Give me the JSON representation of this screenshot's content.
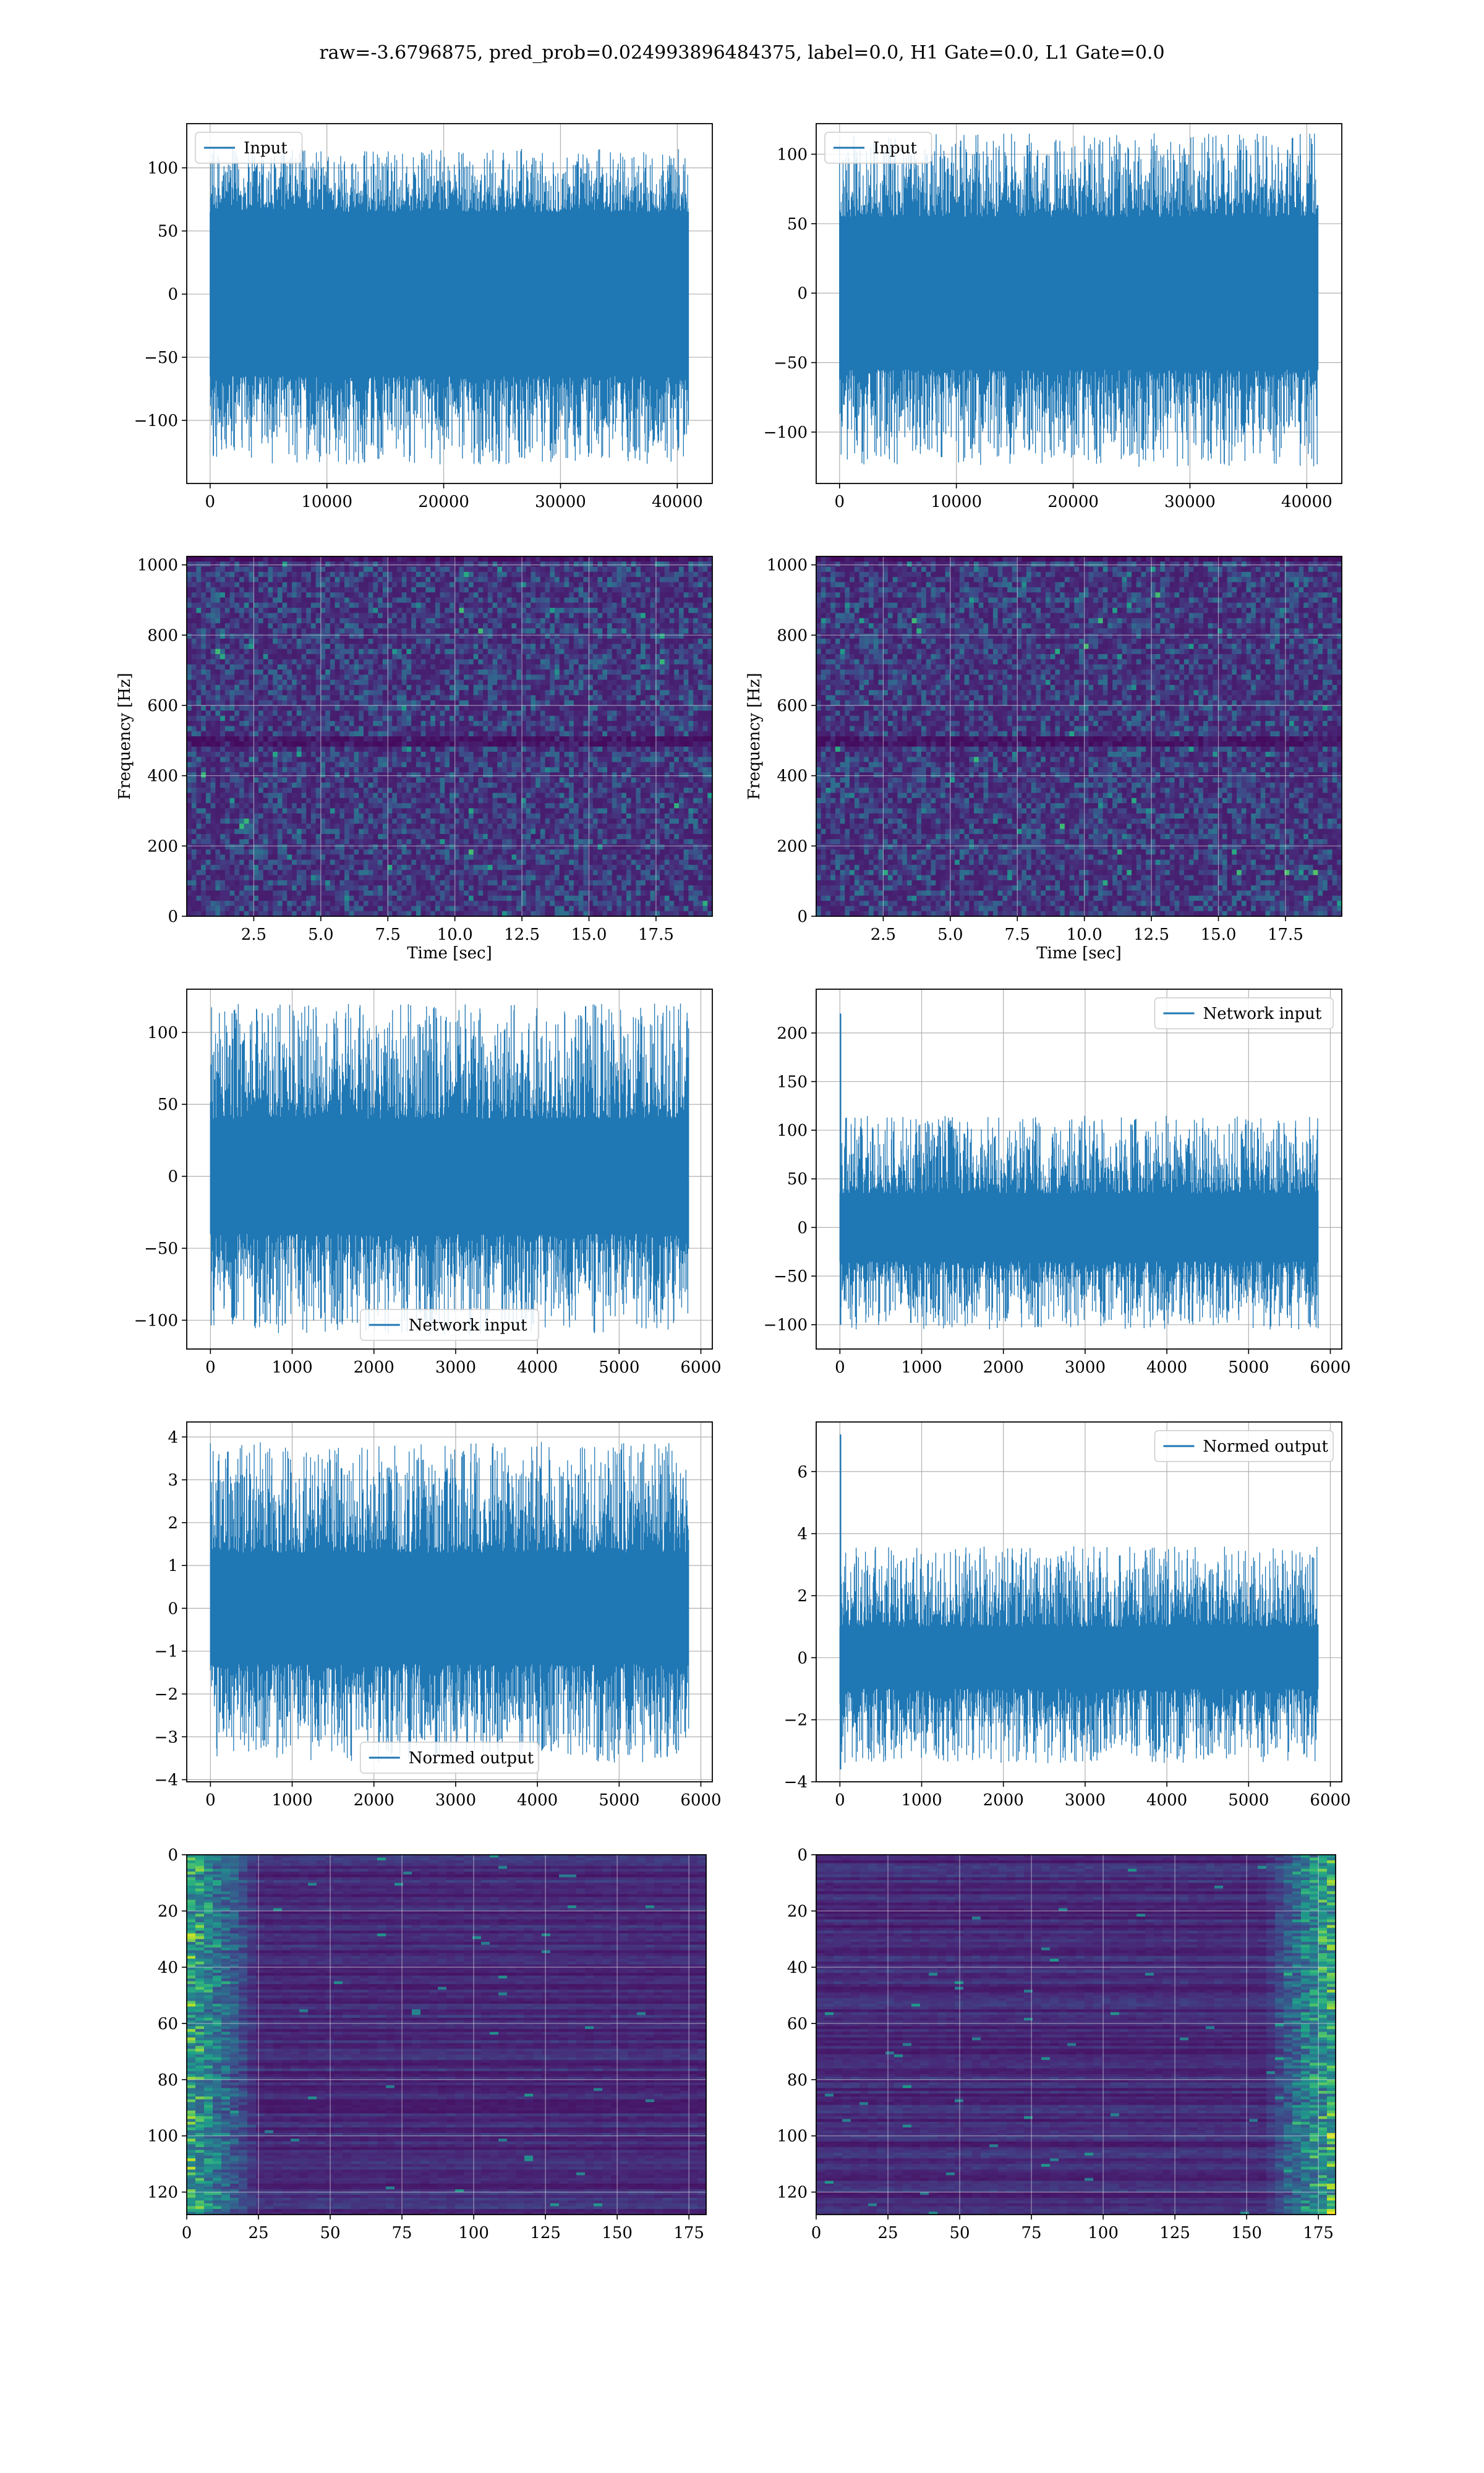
{
  "suptitle": "raw=-3.6796875, pred_prob=0.024993896484375, label=0.0, H1 Gate=0.0, L1 Gate=0.0",
  "colors": {
    "line": "#1f77b4",
    "grid": "#b0b0b0",
    "viridis_low": "#440154",
    "viridis_high": "#fde725"
  },
  "chart_data": [
    {
      "id": "r1c1",
      "type": "line",
      "legend": "Input",
      "legend_loc": "upper left",
      "xlim": [
        -2000,
        43000
      ],
      "ylim": [
        -150,
        135
      ],
      "xticks": [
        0,
        10000,
        20000,
        30000,
        40000
      ],
      "xticklabels": [
        "0",
        "10000",
        "20000",
        "30000",
        "40000"
      ],
      "yticks": [
        -100,
        -50,
        0,
        50,
        100
      ],
      "yticklabels": [
        "−100",
        "−50",
        "0",
        "50",
        "100"
      ],
      "x_range": [
        0,
        40960
      ],
      "band": [
        -65,
        65
      ],
      "spike_extent": [
        -135,
        115
      ],
      "grid": true
    },
    {
      "id": "r1c2",
      "type": "line",
      "legend": "Input",
      "legend_loc": "upper left",
      "xlim": [
        -2000,
        43000
      ],
      "ylim": [
        -137,
        122
      ],
      "xticks": [
        0,
        10000,
        20000,
        30000,
        40000
      ],
      "xticklabels": [
        "0",
        "10000",
        "20000",
        "30000",
        "40000"
      ],
      "yticks": [
        -100,
        -50,
        0,
        50,
        100
      ],
      "yticklabels": [
        "−100",
        "−50",
        "0",
        "50",
        "100"
      ],
      "x_range": [
        0,
        40960
      ],
      "band": [
        -55,
        55
      ],
      "spike_extent": [
        -125,
        115
      ],
      "grid": true
    },
    {
      "id": "r2c1",
      "type": "heatmap",
      "colormap": "viridis",
      "xlim": [
        0,
        19.6
      ],
      "ylim": [
        0,
        1024
      ],
      "xticks": [
        2.5,
        5.0,
        7.5,
        10.0,
        12.5,
        15.0,
        17.5
      ],
      "xticklabels": [
        "2.5",
        "5.0",
        "7.5",
        "10.0",
        "12.5",
        "15.0",
        "17.5"
      ],
      "yticks": [
        0,
        200,
        400,
        600,
        800,
        1000
      ],
      "yticklabels": [
        "0",
        "200",
        "400",
        "600",
        "800",
        "1000"
      ],
      "xlabel": "Time [sec]",
      "ylabel": "Frequency [Hz]",
      "grid": true
    },
    {
      "id": "r2c2",
      "type": "heatmap",
      "colormap": "viridis",
      "xlim": [
        0,
        19.6
      ],
      "ylim": [
        0,
        1024
      ],
      "xticks": [
        2.5,
        5.0,
        7.5,
        10.0,
        12.5,
        15.0,
        17.5
      ],
      "xticklabels": [
        "2.5",
        "5.0",
        "7.5",
        "10.0",
        "12.5",
        "15.0",
        "17.5"
      ],
      "yticks": [
        0,
        200,
        400,
        600,
        800,
        1000
      ],
      "yticklabels": [
        "0",
        "200",
        "400",
        "600",
        "800",
        "1000"
      ],
      "xlabel": "Time [sec]",
      "ylabel": "Frequency [Hz]",
      "grid": true
    },
    {
      "id": "r3c1",
      "type": "line",
      "legend": "Network input",
      "legend_loc": "lower center",
      "xlim": [
        -290,
        6140
      ],
      "ylim": [
        -120,
        130
      ],
      "xticks": [
        0,
        1000,
        2000,
        3000,
        4000,
        5000,
        6000
      ],
      "xticklabels": [
        "0",
        "1000",
        "2000",
        "3000",
        "4000",
        "5000",
        "6000"
      ],
      "yticks": [
        -100,
        -50,
        0,
        50,
        100
      ],
      "yticklabels": [
        "−100",
        "−50",
        "0",
        "50",
        "100"
      ],
      "x_range": [
        0,
        5850
      ],
      "band": [
        -40,
        40
      ],
      "spike_extent": [
        -110,
        120
      ],
      "grid": true
    },
    {
      "id": "r3c2",
      "type": "line",
      "legend": "Network input",
      "legend_loc": "upper right",
      "xlim": [
        -290,
        6140
      ],
      "ylim": [
        -125,
        245
      ],
      "xticks": [
        0,
        1000,
        2000,
        3000,
        4000,
        5000,
        6000
      ],
      "xticklabels": [
        "0",
        "1000",
        "2000",
        "3000",
        "4000",
        "5000",
        "6000"
      ],
      "yticks": [
        -100,
        -50,
        0,
        50,
        100,
        150,
        200
      ],
      "yticklabels": [
        "−100",
        "−50",
        "0",
        "50",
        "100",
        "150",
        "200"
      ],
      "x_range": [
        0,
        5850
      ],
      "band": [
        -35,
        35
      ],
      "spike_extent": [
        -105,
        115
      ],
      "initial_spike": [
        -100,
        220
      ],
      "grid": true
    },
    {
      "id": "r4c1",
      "type": "line",
      "legend": "Normed output",
      "legend_loc": "lower center",
      "xlim": [
        -290,
        6140
      ],
      "ylim": [
        -4.05,
        4.35
      ],
      "xticks": [
        0,
        1000,
        2000,
        3000,
        4000,
        5000,
        6000
      ],
      "xticklabels": [
        "0",
        "1000",
        "2000",
        "3000",
        "4000",
        "5000",
        "6000"
      ],
      "yticks": [
        -4,
        -3,
        -2,
        -1,
        0,
        1,
        2,
        3,
        4
      ],
      "yticklabels": [
        "−4",
        "−3",
        "−2",
        "−1",
        "0",
        "1",
        "2",
        "3",
        "4"
      ],
      "x_range": [
        0,
        5850
      ],
      "band": [
        -1.3,
        1.3
      ],
      "spike_extent": [
        -3.6,
        3.9
      ],
      "grid": true
    },
    {
      "id": "r4c2",
      "type": "line",
      "legend": "Normed output",
      "legend_loc": "upper right",
      "xlim": [
        -290,
        6140
      ],
      "ylim": [
        -4.0,
        7.6
      ],
      "xticks": [
        0,
        1000,
        2000,
        3000,
        4000,
        5000,
        6000
      ],
      "xticklabels": [
        "0",
        "1000",
        "2000",
        "3000",
        "4000",
        "5000",
        "6000"
      ],
      "yticks": [
        -4,
        -2,
        0,
        2,
        4,
        6
      ],
      "yticklabels": [
        "−4",
        "−2",
        "0",
        "2",
        "4",
        "6"
      ],
      "x_range": [
        0,
        5850
      ],
      "band": [
        -1.0,
        1.0
      ],
      "spike_extent": [
        -3.4,
        3.6
      ],
      "initial_spike": [
        -3.6,
        7.2
      ],
      "grid": true
    },
    {
      "id": "r5c1",
      "type": "heatmap",
      "colormap": "viridis",
      "xlim": [
        0,
        181
      ],
      "ylim": [
        128,
        0
      ],
      "y_inverted": true,
      "xticks": [
        0,
        25,
        50,
        75,
        100,
        125,
        150,
        175
      ],
      "xticklabels": [
        "0",
        "25",
        "50",
        "75",
        "100",
        "125",
        "150",
        "175"
      ],
      "yticks": [
        0,
        20,
        40,
        60,
        80,
        100,
        120
      ],
      "yticklabels": [
        "0",
        "20",
        "40",
        "60",
        "80",
        "100",
        "120"
      ],
      "hot_region": "left",
      "grid": true
    },
    {
      "id": "r5c2",
      "type": "heatmap",
      "colormap": "viridis",
      "xlim": [
        0,
        181
      ],
      "ylim": [
        128,
        0
      ],
      "y_inverted": true,
      "xticks": [
        0,
        25,
        50,
        75,
        100,
        125,
        150,
        175
      ],
      "xticklabels": [
        "0",
        "25",
        "50",
        "75",
        "100",
        "125",
        "150",
        "175"
      ],
      "yticks": [
        0,
        20,
        40,
        60,
        80,
        100,
        120
      ],
      "yticklabels": [
        "0",
        "20",
        "40",
        "60",
        "80",
        "100",
        "120"
      ],
      "hot_region": "right",
      "grid": true
    }
  ]
}
